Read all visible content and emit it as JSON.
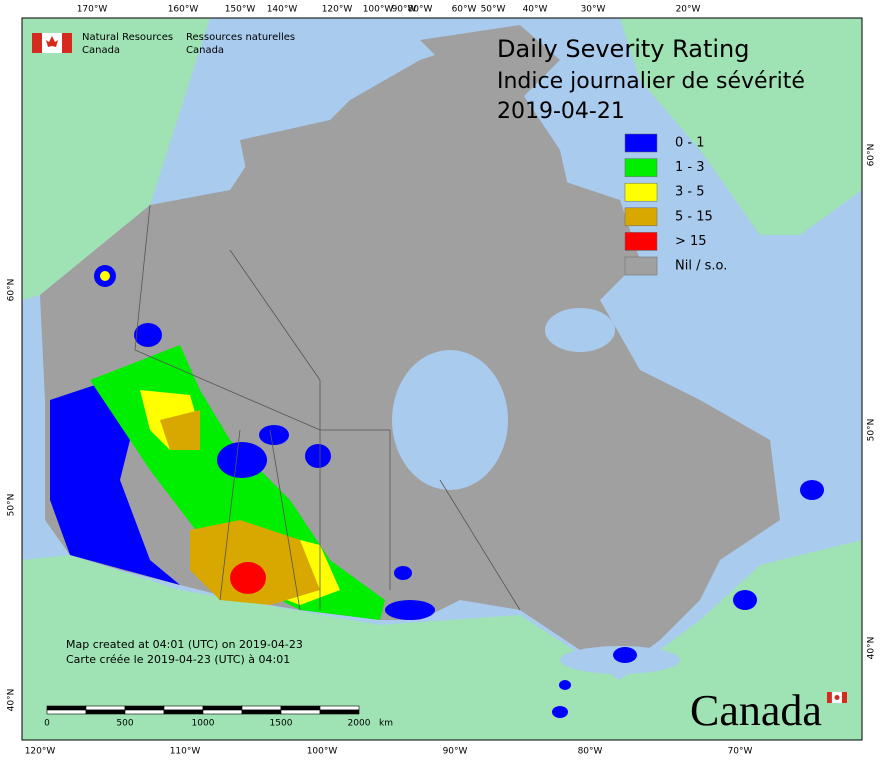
{
  "agency": {
    "en": [
      "Natural Resources",
      "Canada"
    ],
    "fr": [
      "Ressources naturelles",
      "Canada"
    ]
  },
  "title": [
    "Daily Severity Rating",
    "Indice journalier de sévérité",
    "2019-04-21"
  ],
  "legend": [
    {
      "label": "0 - 1",
      "color": "#0000ff"
    },
    {
      "label": "1 - 3",
      "color": "#00ee00"
    },
    {
      "label": "3 - 5",
      "color": "#ffff00"
    },
    {
      "label": "5 - 15",
      "color": "#d9a800"
    },
    {
      "label": "> 15",
      "color": "#ff0000"
    },
    {
      "label": "Nil / s.o.",
      "color": "#a0a0a0"
    }
  ],
  "graticule": {
    "top": [
      "170°W",
      "160°W",
      "150°W",
      "140°W",
      "120°W",
      "100°W",
      "90°W",
      "80°W",
      "60°W",
      "50°W",
      "40°W",
      "30°W",
      "20°W"
    ],
    "bottom": [
      "120°W",
      "110°W",
      "100°W",
      "90°W",
      "80°W",
      "70°W"
    ],
    "left": [
      "60°N",
      "50°N",
      "40°N"
    ],
    "right": [
      "60°N",
      "50°N",
      "40°N"
    ]
  },
  "scale_bar": {
    "ticks": [
      0,
      500,
      1000,
      1500,
      2000
    ],
    "unit": "km"
  },
  "notes": [
    "Map created at 04:01 (UTC) on 2019-04-23",
    "Carte créée le 2019-04-23 (UTC) à 04:01"
  ],
  "wordmark": "Canada"
}
